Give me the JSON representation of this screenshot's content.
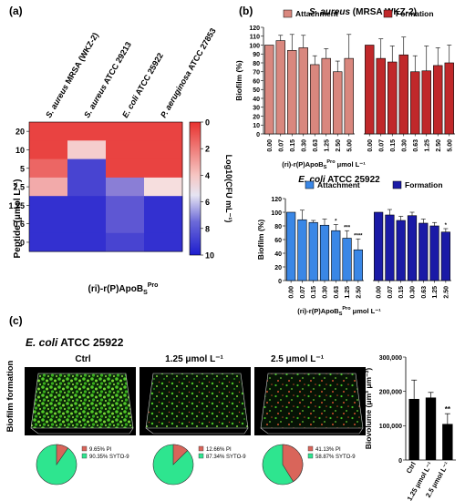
{
  "panel_labels": {
    "a": "(a)",
    "b": "(b)",
    "c": "(c)"
  },
  "heatmap": {
    "columns": [
      "S. aureus MRSA (WKZ-2)",
      "S. aureus ATCC 29213",
      "E. coli ATCC 25922",
      "P. aeruginosa ATCC 27853"
    ],
    "rows": [
      "20",
      "10",
      "5",
      "2.5",
      "1.25",
      "0.6",
      "0"
    ],
    "ylabel": "Peptide (μmol L⁻¹)",
    "xlabel": "(ri)-r(P)ApoB",
    "xlabel_sub": "S",
    "xlabel_sup": "Pro",
    "colorbar_ticks": [
      "0",
      "2",
      "4",
      "6",
      "8",
      "10"
    ],
    "colorbar_label": "Log10(CFU mL⁻¹)"
  },
  "bars_top": {
    "title_italic": "S. aureus",
    "title_rest": " (MRSA WKZ-2)",
    "legend": [
      "Attachment",
      "Formation"
    ],
    "ylabel": "Biofilm (%)",
    "yticks": [
      "0",
      "10",
      "20",
      "30",
      "40",
      "50",
      "60",
      "70",
      "80",
      "90",
      "100",
      "110",
      "120"
    ],
    "xticks": [
      "0.00",
      "0.07",
      "0.15",
      "0.30",
      "0.63",
      "1.25",
      "2.50",
      "5.00"
    ],
    "xlabel": "(ri)-r(P)ApoB",
    "xlabel_sub": "S",
    "xlabel_sup": "Pro",
    "xlabel_unit": " μmol L⁻¹"
  },
  "bars_bottom": {
    "title_italic": "E. coli",
    "title_rest": " ATCC 25922",
    "legend": [
      "Attachment",
      "Formation"
    ],
    "ylabel": "Biofilm (%)",
    "yticks": [
      "0",
      "20",
      "40",
      "60",
      "80",
      "100",
      "120"
    ],
    "xticks": [
      "0.00",
      "0.07",
      "0.15",
      "0.30",
      "0.63",
      "1.25",
      "2.50"
    ],
    "sig_attachment": [
      "",
      "",
      "",
      "",
      "*",
      "***",
      "****"
    ],
    "sig_formation": [
      "",
      "",
      "",
      "",
      "",
      "",
      "*"
    ],
    "xlabel": "(ri)-r(P)ApoB",
    "xlabel_sub": "S",
    "xlabel_sup": "Pro",
    "xlabel_unit": " μmol L⁻¹"
  },
  "panel_c": {
    "title_italic": "E. coli",
    "title_rest": " ATCC 25922",
    "row_label": "Biofilm formation",
    "conditions": [
      "Ctrl",
      "1.25 μmol L⁻¹",
      "2.5 μmol L⁻¹"
    ],
    "pies": [
      {
        "pi": "9.65%",
        "syto": "90.35%"
      },
      {
        "pi": "12.66%",
        "syto": "87.34%"
      },
      {
        "pi": "41.13%",
        "syto": "58.87%"
      }
    ],
    "pie_legend": {
      "pi": "PI",
      "syto": "SYTO-9"
    },
    "biovolume_ylabel": "Biovolume (μm³ μm⁻²)",
    "biovolume_yticks": [
      "0",
      "100,000",
      "200,000",
      "300,000"
    ],
    "biovolume_xticks": [
      "Ctrl",
      "1.25 μmol L⁻¹",
      "2.5 μmol L⁻¹"
    ],
    "biovolume_sig": "**"
  },
  "colors": {
    "attach_top": "#d9877e",
    "form_top": "#c0282a",
    "attach_bottom": "#3a87e6",
    "form_bottom": "#1a1aa6",
    "pi": "#d9655a",
    "syto": "#2ee58f"
  },
  "chart_data": [
    {
      "type": "heatmap",
      "rows": [
        "20",
        "10",
        "5",
        "2.5",
        "1.25",
        "0.6",
        "0"
      ],
      "columns": [
        "S. aureus MRSA (WKZ-2)",
        "S. aureus ATCC 29213",
        "E. coli ATCC 25922",
        "P. aeruginosa ATCC 27853"
      ],
      "values": [
        [
          0.5,
          0.5,
          0.5,
          0.5
        ],
        [
          0.5,
          4.5,
          0.5,
          0.5
        ],
        [
          1.5,
          9.0,
          0.5,
          0.5
        ],
        [
          3.5,
          9.0,
          7.5,
          5.0
        ],
        [
          9.5,
          9.5,
          8.5,
          9.5
        ],
        [
          9.5,
          9.5,
          8.5,
          9.5
        ],
        [
          9.5,
          9.5,
          9.0,
          9.5
        ]
      ],
      "zlim": [
        0,
        10
      ]
    },
    {
      "type": "bar",
      "title": "S. aureus (MRSA WKZ-2)",
      "categories": [
        "0.00",
        "0.07",
        "0.15",
        "0.30",
        "0.63",
        "1.25",
        "2.50",
        "5.00"
      ],
      "series": [
        {
          "name": "Attachment",
          "values": [
            100,
            105,
            94,
            97,
            78,
            85,
            70,
            85
          ],
          "errors": [
            0,
            6,
            18,
            14,
            10,
            11,
            12,
            27
          ]
        },
        {
          "name": "Formation",
          "values": [
            100,
            85,
            81,
            89,
            70,
            71,
            77,
            80
          ],
          "errors": [
            0,
            22,
            18,
            20,
            18,
            28,
            20,
            20
          ]
        }
      ],
      "ylabel": "Biofilm (%)",
      "ylim": [
        0,
        120
      ]
    },
    {
      "type": "bar",
      "title": "E. coli ATCC 25922",
      "categories": [
        "0.00",
        "0.07",
        "0.15",
        "0.30",
        "0.63",
        "1.25",
        "2.50"
      ],
      "series": [
        {
          "name": "Attachment",
          "values": [
            100,
            89,
            85,
            81,
            73,
            62,
            45
          ],
          "errors": [
            0,
            14,
            3,
            9,
            9,
            11,
            16
          ]
        },
        {
          "name": "Formation",
          "values": [
            100,
            96,
            88,
            95,
            84,
            80,
            71
          ],
          "errors": [
            0,
            8,
            6,
            5,
            6,
            5,
            5
          ]
        }
      ],
      "ylabel": "Biofilm (%)",
      "ylim": [
        0,
        120
      ]
    },
    {
      "type": "pie",
      "categories": [
        "PI",
        "SYTO-9"
      ],
      "groups": [
        "Ctrl",
        "1.25 μmol L⁻¹",
        "2.5 μmol L⁻¹"
      ],
      "values": [
        [
          9.65,
          90.35
        ],
        [
          12.66,
          87.34
        ],
        [
          41.13,
          58.87
        ]
      ]
    },
    {
      "type": "bar",
      "categories": [
        "Ctrl",
        "1.25 μmol L⁻¹",
        "2.5 μmol L⁻¹"
      ],
      "values": [
        178000,
        182000,
        105000
      ],
      "errors": [
        55000,
        15000,
        30000
      ],
      "ylabel": "Biovolume (μm³ μm⁻²)",
      "ylim": [
        0,
        300000
      ]
    }
  ]
}
